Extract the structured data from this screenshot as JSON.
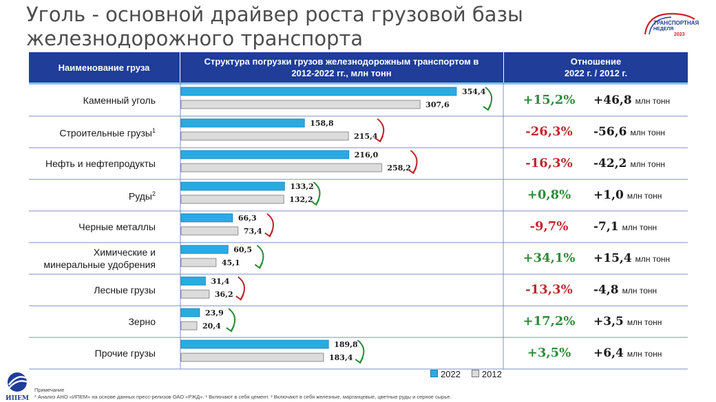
{
  "title_line1": "Уголь - основной драйвер роста грузовой базы",
  "title_line2": "железнодорожного транспорта",
  "logo": {
    "line1": "ТРАНСПОРТНАЯ",
    "line2": "НЕДЕЛЯ",
    "year": "2023"
  },
  "header": {
    "col1": "Наименование груза",
    "col2_line1": "Структура погрузки грузов железнодорожным транспортом в",
    "col2_line2": "2012-2022 гг., млн тонн",
    "col3_line1": "Отношение",
    "col3_line2": "2022 г. / 2012 г."
  },
  "legend": {
    "s2022": "2022",
    "s2012": "2012"
  },
  "unit": "млн тонн",
  "note_line1": "Примечание",
  "note_line2": "* Анализ АНО «ИПЕМ» на основе данных пресс-релизов ОАО «РЖД». ¹ Включают в себя цемент. ² Включают в себя железные, марганцевые, цветные руды и серное сырье.",
  "ipem_label": "ИПЕМ",
  "colors": {
    "bar2022": "#29abe2",
    "bar2012": "#dcdcdc",
    "up": "#2e8b3a",
    "down": "#c0272d",
    "header": "#1f3d99"
  },
  "rows": [
    {
      "label": "Каменный уголь",
      "sup": "",
      "pct": "+15,2%",
      "abs": "+46,8",
      "dir": "up"
    },
    {
      "label": "Строительные грузы",
      "sup": "1",
      "pct": "-26,3%",
      "abs": "-56,6",
      "dir": "down"
    },
    {
      "label": "Нефть и нефтепродукты",
      "sup": "",
      "pct": "-16,3%",
      "abs": "-42,2",
      "dir": "down"
    },
    {
      "label": "Руды",
      "sup": "2",
      "pct": "+0,8%",
      "abs": "+1,0",
      "dir": "up"
    },
    {
      "label": "Черные металлы",
      "sup": "",
      "pct": "-9,7%",
      "abs": "-7,1",
      "dir": "down"
    },
    {
      "label": "Химические и минеральные удобрения",
      "sup": "",
      "pct": "+34,1%",
      "abs": "+15,4",
      "dir": "up"
    },
    {
      "label": "Лесные грузы",
      "sup": "",
      "pct": "-13,3%",
      "abs": "-4,8",
      "dir": "down"
    },
    {
      "label": "Зерно",
      "sup": "",
      "pct": "+17,2%",
      "abs": "+3,5",
      "dir": "up"
    },
    {
      "label": "Прочие грузы",
      "sup": "",
      "pct": "+3,5%",
      "abs": "+6,4",
      "dir": "up"
    }
  ],
  "chart_data": {
    "type": "bar",
    "orientation": "horizontal",
    "categories": [
      "Каменный уголь",
      "Строительные грузы",
      "Нефть и нефтепродукты",
      "Руды",
      "Черные металлы",
      "Химические и минеральные удобрения",
      "Лесные грузы",
      "Зерно",
      "Прочие грузы"
    ],
    "series": [
      {
        "name": "2022",
        "values": [
          354.4,
          158.8,
          216.0,
          133.2,
          66.3,
          60.5,
          31.4,
          23.9,
          189.8
        ],
        "labels": [
          "354,4",
          "158,8",
          "216,0",
          "133,2",
          "66,3",
          "60,5",
          "31,4",
          "23,9",
          "189,8"
        ]
      },
      {
        "name": "2012",
        "values": [
          307.6,
          215.4,
          258.2,
          132.2,
          73.4,
          45.1,
          36.2,
          20.4,
          183.4
        ],
        "labels": [
          "307,6",
          "215,4",
          "258,2",
          "132,2",
          "73,4",
          "45,1",
          "36,2",
          "20,4",
          "183,4"
        ]
      }
    ],
    "xlim": [
      0,
      354.4
    ],
    "legend": "bottom-right",
    "grid": false
  }
}
